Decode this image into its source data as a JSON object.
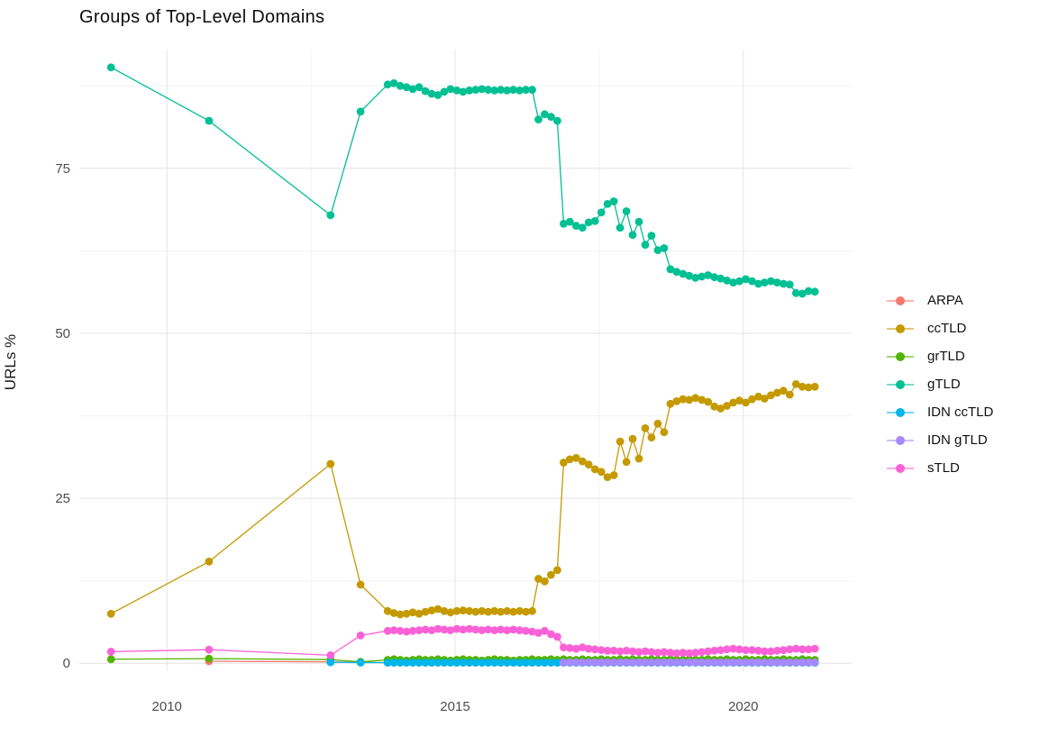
{
  "title": "Groups of Top-Level Domains",
  "axes": {
    "y_label": "URLs %",
    "y_tick_labels": [
      "0",
      "25",
      "50",
      "75"
    ],
    "x_tick_labels": [
      "2010",
      "2015",
      "2020"
    ],
    "tick_color": "#4d4d4d",
    "major_grid_color": "#e4e4e4",
    "minor_grid_color": "#f2f2f2"
  },
  "chart_data": {
    "type": "line",
    "title": "Groups of Top-Level Domains",
    "xlabel": "",
    "ylabel": "URLs %",
    "x_domain": [
      2008.48,
      2021.88
    ],
    "y_domain": [
      -1.2,
      93.0
    ],
    "x_ticks": [
      2010,
      2015,
      2020
    ],
    "x_minor_ticks": [
      2012.5,
      2017.5
    ],
    "y_ticks": [
      0,
      25,
      50,
      75
    ],
    "y_minor_ticks": [
      12.5,
      37.5,
      62.5,
      87.5
    ],
    "grid": true,
    "legend_position": "right",
    "marker_radius": 4.4,
    "series": [
      {
        "name": "ARPA",
        "color": "#F8766D",
        "pre": [
          [
            2010.73,
            0.3
          ],
          [
            2012.84,
            0.2
          ],
          [
            2013.36,
            0.15
          ]
        ],
        "dense": {
          "x_start": 2013.83,
          "x_step": 0.109,
          "values": {
            "repeat": 0.1,
            "count": 69
          }
        }
      },
      {
        "name": "ccTLD",
        "color": "#C49A00",
        "pre": [
          [
            2009.03,
            7.5
          ],
          [
            2010.73,
            15.4
          ],
          [
            2012.84,
            30.2
          ],
          [
            2013.36,
            11.9
          ]
        ],
        "dense": {
          "x_start": 2013.83,
          "x_step": 0.109,
          "values": [
            7.9,
            7.6,
            7.4,
            7.5,
            7.7,
            7.5,
            7.8,
            8.0,
            8.2,
            7.9,
            7.7,
            7.9,
            8.0,
            7.9,
            7.8,
            7.9,
            7.8,
            7.9,
            7.8,
            7.9,
            7.8,
            7.9,
            7.8,
            7.9,
            12.8,
            12.4,
            13.4,
            14.1,
            30.4,
            30.9,
            31.1,
            30.6,
            30.1,
            29.4,
            29.0,
            28.2,
            28.5,
            33.6,
            30.5,
            34.0,
            31.0,
            35.6,
            34.2,
            36.3,
            35.0,
            39.3,
            39.7,
            40.0,
            39.9,
            40.2,
            39.9,
            39.6,
            38.9,
            38.6,
            39.0,
            39.5,
            39.8,
            39.5,
            40.0,
            40.4,
            40.1,
            40.6,
            41.0,
            41.3,
            40.7,
            42.3,
            41.9,
            41.8,
            41.9
          ]
        }
      },
      {
        "name": "grTLD",
        "color": "#53B400",
        "pre": [
          [
            2009.03,
            0.6
          ],
          [
            2010.73,
            0.7
          ],
          [
            2012.84,
            0.55
          ],
          [
            2013.36,
            0.2
          ]
        ],
        "dense": {
          "x_start": 2013.83,
          "x_step": 0.109,
          "values": [
            0.5,
            0.6,
            0.5,
            0.4,
            0.5,
            0.6,
            0.5,
            0.5,
            0.6,
            0.5,
            0.4,
            0.5,
            0.6,
            0.5,
            0.5,
            0.4,
            0.5,
            0.6,
            0.5,
            0.5,
            0.4,
            0.5,
            0.5,
            0.6,
            0.5,
            0.5,
            0.6,
            0.5,
            0.6,
            0.5,
            0.5,
            0.6,
            0.5,
            0.5,
            0.6,
            0.5,
            0.5,
            0.6,
            0.5,
            0.6,
            0.5,
            0.5,
            0.6,
            0.5,
            0.5,
            0.6,
            0.5,
            0.5,
            0.6,
            0.5,
            0.5,
            0.6,
            0.5,
            0.5,
            0.6,
            0.5,
            0.5,
            0.6,
            0.5,
            0.5,
            0.6,
            0.5,
            0.5,
            0.6,
            0.5,
            0.5,
            0.6,
            0.5,
            0.5
          ]
        }
      },
      {
        "name": "gTLD",
        "color": "#00C094",
        "pre": [
          [
            2009.03,
            90.3
          ],
          [
            2010.73,
            82.2
          ],
          [
            2012.84,
            67.9
          ],
          [
            2013.36,
            83.6
          ]
        ],
        "dense": {
          "x_start": 2013.83,
          "x_step": 0.109,
          "values": [
            87.7,
            87.9,
            87.5,
            87.3,
            87.0,
            87.3,
            86.7,
            86.3,
            86.1,
            86.6,
            87.0,
            86.8,
            86.6,
            86.8,
            86.9,
            87.0,
            86.9,
            86.8,
            86.9,
            86.8,
            86.9,
            86.8,
            86.9,
            86.9,
            82.4,
            83.2,
            82.8,
            82.2,
            66.6,
            66.9,
            66.3,
            66.0,
            66.8,
            67.0,
            68.3,
            69.6,
            70.0,
            66.0,
            68.5,
            64.9,
            66.9,
            63.4,
            64.8,
            62.6,
            62.9,
            59.7,
            59.3,
            59.0,
            58.7,
            58.4,
            58.6,
            58.8,
            58.5,
            58.3,
            58.0,
            57.7,
            57.9,
            58.2,
            57.9,
            57.5,
            57.7,
            57.9,
            57.7,
            57.5,
            57.4,
            56.1,
            56.0,
            56.4,
            56.3
          ]
        }
      },
      {
        "name": "IDN ccTLD",
        "color": "#00B6EB",
        "pre": [
          [
            2012.84,
            0.15
          ],
          [
            2013.36,
            0.1
          ]
        ],
        "dense": {
          "x_start": 2013.83,
          "x_step": 0.109,
          "values": {
            "repeat": 0.08,
            "count": 69
          }
        }
      },
      {
        "name": "IDN gTLD",
        "color": "#A58AFF",
        "pre": [],
        "dense": {
          "x_start": 2016.88,
          "x_step": 0.109,
          "values": {
            "repeat": 0.12,
            "count": 41
          }
        }
      },
      {
        "name": "sTLD",
        "color": "#FB61D7",
        "pre": [
          [
            2009.03,
            1.75
          ],
          [
            2010.73,
            2.05
          ],
          [
            2012.84,
            1.2
          ],
          [
            2013.36,
            4.2
          ]
        ],
        "dense": {
          "x_start": 2013.83,
          "x_step": 0.109,
          "values": [
            4.9,
            5.0,
            4.9,
            4.8,
            4.9,
            5.0,
            5.1,
            5.0,
            5.2,
            5.1,
            5.0,
            5.2,
            5.1,
            5.2,
            5.1,
            5.0,
            5.1,
            5.0,
            5.1,
            5.0,
            5.1,
            5.0,
            4.9,
            4.8,
            4.6,
            4.9,
            4.4,
            4.0,
            2.4,
            2.3,
            2.2,
            2.4,
            2.2,
            2.1,
            2.0,
            1.9,
            1.9,
            1.8,
            1.9,
            1.8,
            1.7,
            1.8,
            1.7,
            1.6,
            1.7,
            1.6,
            1.5,
            1.6,
            1.5,
            1.6,
            1.7,
            1.8,
            1.9,
            2.0,
            2.1,
            2.2,
            2.1,
            2.0,
            2.0,
            1.9,
            1.8,
            1.8,
            1.9,
            2.0,
            2.1,
            2.2,
            2.1,
            2.1,
            2.2
          ]
        }
      }
    ]
  }
}
